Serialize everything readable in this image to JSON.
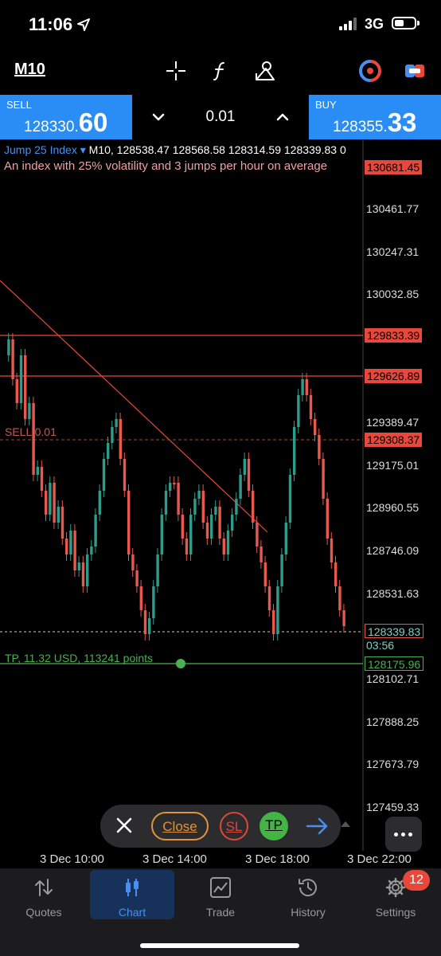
{
  "status_bar": {
    "time": "11:06",
    "network": "3G"
  },
  "toolbar": {
    "timeframe": "M10",
    "icons": [
      "crosshair-icon",
      "indicators-function-icon",
      "objects-shapes-icon",
      "one-click-trading-icon",
      "chart-settings-icon"
    ]
  },
  "trade_panel": {
    "sell_label": "SELL",
    "sell_price_main": "128330.",
    "sell_price_big": "60",
    "lot": "0.01",
    "buy_label": "BUY",
    "buy_price_main": "128355.",
    "buy_price_big": "33"
  },
  "chart": {
    "symbol": "Jump 25 Index",
    "ohlc_text": "M10, 128538.47 128568.58 128314.59 128339.83 0",
    "description": "An index with 25% volatility and 3 jumps per hour on average",
    "price_ticks": [
      "130461.77",
      "130247.31",
      "130032.85",
      "129389.47",
      "129175.01",
      "128960.55",
      "128746.09",
      "128531.63",
      "128102.71",
      "127888.25",
      "127673.79",
      "127459.33"
    ],
    "tags": {
      "top": "130681.45",
      "line1": "129833.39",
      "line2": "129626.89",
      "sell": "129308.37",
      "current": "128339.83",
      "countdown": "03:56",
      "tp": "128175.96"
    },
    "sell_line_label": "SELL 0.01",
    "tp_line_label": "TP, 11.32 USD, 113241 points",
    "time_labels": [
      "3 Dec 10:00",
      "3 Dec 14:00",
      "3 Dec 18:00",
      "3 Dec 22:00"
    ],
    "colors": {
      "up": "#2e9c8b",
      "down": "#e8584c",
      "line": "#e8483c",
      "tp": "#4caf50"
    }
  },
  "floating_bar": {
    "close": "Close",
    "sl": "SL",
    "tp": "TP"
  },
  "tabs": [
    {
      "label": "Quotes",
      "icon": "quotes-arrows-icon"
    },
    {
      "label": "Chart",
      "icon": "chart-candles-icon"
    },
    {
      "label": "Trade",
      "icon": "trade-chart-icon"
    },
    {
      "label": "History",
      "icon": "history-clock-icon"
    },
    {
      "label": "Settings",
      "icon": "settings-gear-icon"
    }
  ],
  "settings_badge": "12"
}
